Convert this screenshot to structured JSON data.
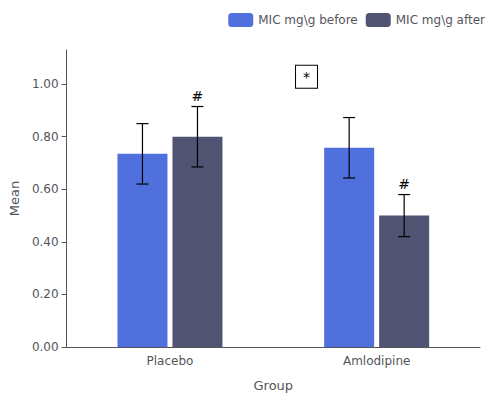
{
  "chart_data": {
    "type": "bar",
    "xlabel": "Group",
    "ylabel": "Mean",
    "categories": [
      "Placebo",
      "Amlodipine"
    ],
    "series": [
      {
        "name": "MIC mg\\g before",
        "values": [
          0.735,
          0.758
        ],
        "errors": [
          0.115,
          0.115
        ]
      },
      {
        "name": "MIC mg\\g after",
        "values": [
          0.8,
          0.5
        ],
        "errors": [
          0.115,
          0.08
        ]
      }
    ],
    "annotations": [
      {
        "text": "#",
        "series": "MIC mg\\g after",
        "category": "Placebo"
      },
      {
        "text": "#",
        "series": "MIC mg\\g after",
        "category": "Amlodipine"
      },
      {
        "text": "*"
      }
    ],
    "ylim": [
      0.0,
      1.13
    ],
    "yticks": [
      {
        "value": 0.0,
        "label": "0.00"
      },
      {
        "value": 0.2,
        "label": "0.20"
      },
      {
        "value": 0.4,
        "label": "0.40"
      },
      {
        "value": 0.6,
        "label": "0.60"
      },
      {
        "value": 0.8,
        "label": "0.80"
      },
      {
        "value": 1.0,
        "label": "1.00"
      }
    ],
    "grid": false,
    "legend": "upper right"
  }
}
